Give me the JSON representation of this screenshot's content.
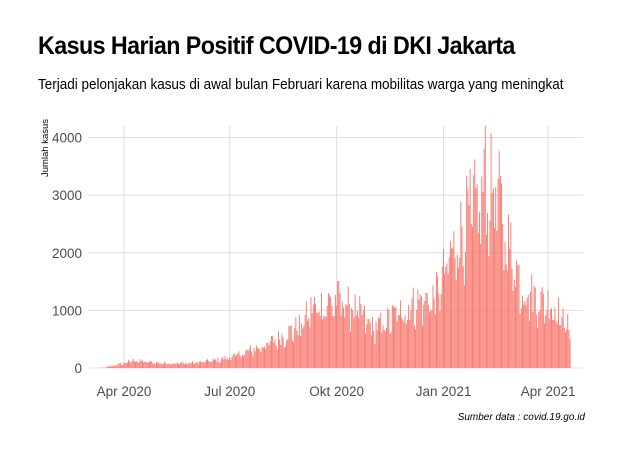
{
  "chart_data": {
    "type": "bar",
    "title": "Kasus Harian Positif COVID-19 di DKI Jakarta",
    "subtitle": "Terjadi pelonjakan kasus di awal bulan Februari karena mobilitas warga yang meningkat",
    "caption": "Sumber data : covid.19.go.id",
    "xlabel": "",
    "ylabel": "Jumlah kasus",
    "ylim": [
      0,
      4200
    ],
    "yticks": [
      0,
      1000,
      2000,
      3000,
      4000
    ],
    "x_range": [
      "2020-03-01",
      "2021-05-01"
    ],
    "xticks": [
      {
        "date": "2020-04-01",
        "label": "Apr 2020"
      },
      {
        "date": "2020-07-01",
        "label": "Jul 2020"
      },
      {
        "date": "2020-10-01",
        "label": "Okt 2020"
      },
      {
        "date": "2021-01-01",
        "label": "Jan 2021"
      },
      {
        "date": "2021-04-01",
        "label": "Apr 2021"
      }
    ],
    "grid": true,
    "bar_color": "#f8766d",
    "series_trend": [
      [
        "2020-03-10",
        0
      ],
      [
        "2020-03-15",
        5
      ],
      [
        "2020-03-20",
        30
      ],
      [
        "2020-03-31",
        80
      ],
      [
        "2020-04-10",
        140
      ],
      [
        "2020-04-20",
        110
      ],
      [
        "2020-05-01",
        90
      ],
      [
        "2020-05-20",
        85
      ],
      [
        "2020-06-01",
        95
      ],
      [
        "2020-06-20",
        140
      ],
      [
        "2020-07-01",
        190
      ],
      [
        "2020-07-15",
        280
      ],
      [
        "2020-08-01",
        420
      ],
      [
        "2020-08-15",
        560
      ],
      [
        "2020-09-01",
        780
      ],
      [
        "2020-09-10",
        1080
      ],
      [
        "2020-09-25",
        1180
      ],
      [
        "2020-10-05",
        1230
      ],
      [
        "2020-10-20",
        1000
      ],
      [
        "2020-11-01",
        720
      ],
      [
        "2020-11-10",
        780
      ],
      [
        "2020-11-25",
        1020
      ],
      [
        "2020-12-10",
        1180
      ],
      [
        "2020-12-25",
        1250
      ],
      [
        "2021-01-05",
        1900
      ],
      [
        "2021-01-20",
        2600
      ],
      [
        "2021-02-05",
        3100
      ],
      [
        "2021-02-15",
        3250
      ],
      [
        "2021-02-25",
        2300
      ],
      [
        "2021-03-10",
        1450
      ],
      [
        "2021-03-25",
        1200
      ],
      [
        "2021-04-05",
        1150
      ],
      [
        "2021-04-15",
        850
      ],
      [
        "2021-04-20",
        700
      ]
    ],
    "peak": {
      "date": "2021-02-06",
      "value": 4213
    }
  }
}
